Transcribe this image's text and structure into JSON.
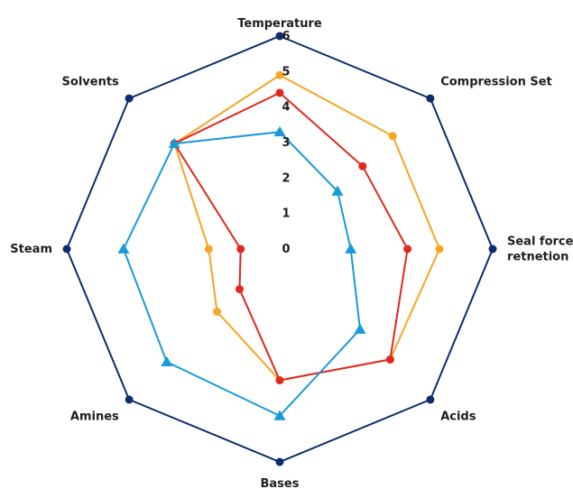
{
  "chart_data": {
    "type": "radar",
    "axes": [
      "Temperature",
      "Compression Set",
      "Seal force\nretnetion",
      "Acids",
      "Bases",
      "Amines",
      "Steam",
      "Solvents"
    ],
    "rlim": [
      0,
      6
    ],
    "ticks": [
      "0",
      "1",
      "2",
      "3",
      "4",
      "5",
      "6"
    ],
    "grid": false,
    "legend": "none",
    "series": [
      {
        "color": "#0b2c6e",
        "marker": "circle",
        "values": [
          6,
          6,
          6,
          6,
          6,
          6,
          6,
          6
        ]
      },
      {
        "color": "#f5a623",
        "marker": "circle",
        "values": [
          4.9,
          4.5,
          4.5,
          4.4,
          3.7,
          2.5,
          2.0,
          4.2
        ]
      },
      {
        "color": "#e0281e",
        "marker": "circle",
        "values": [
          4.4,
          3.3,
          3.6,
          4.4,
          3.7,
          1.6,
          1.1,
          4.2
        ]
      },
      {
        "color": "#1a9ad6",
        "marker": "triangle",
        "values": [
          3.3,
          2.3,
          2.0,
          3.2,
          4.7,
          4.5,
          4.4,
          4.2
        ]
      }
    ]
  }
}
